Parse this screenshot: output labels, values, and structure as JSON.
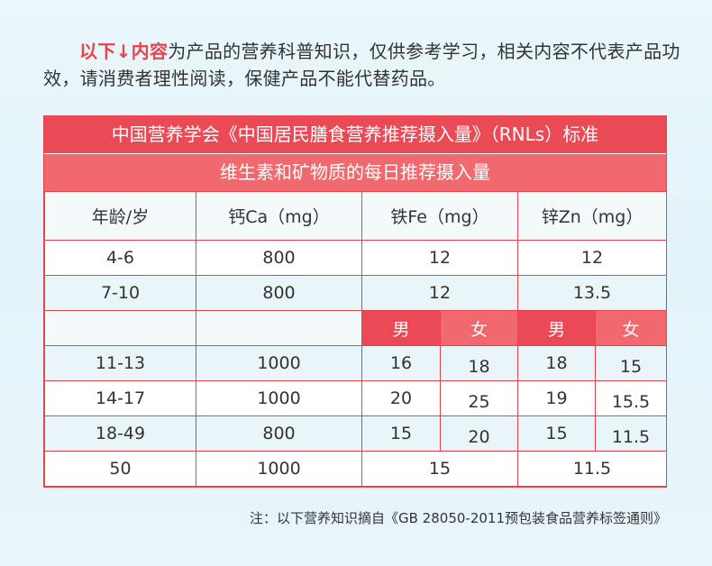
{
  "intro": {
    "highlight": "以下↓内容",
    "text": "为产品的营养科普知识，仅供参考学习，相关内容不代表产品功效，请消费者理性阅读，保健产品不能代替药品。"
  },
  "table": {
    "title": "中国营养学会《中国居民膳食营养推荐摄入量》（RNLs）标准",
    "subtitle": "维生素和矿物质的每日推荐摄入量",
    "headers": [
      "年龄/岁",
      "钙Ca（mg）",
      "铁Fe（mg）",
      "锌Zn（mg）"
    ],
    "sex_labels": {
      "male": "男",
      "female": "女"
    },
    "rows_combined_top": [
      {
        "age": "4-6",
        "ca": "800",
        "fe": "12",
        "zn": "12"
      },
      {
        "age": "7-10",
        "ca": "800",
        "fe": "12",
        "zn": "13.5"
      }
    ],
    "rows_split": [
      {
        "age": "11-13",
        "ca": "1000",
        "fe_m": "16",
        "fe_f": "18",
        "zn_m": "18",
        "zn_f": "15"
      },
      {
        "age": "14-17",
        "ca": "1000",
        "fe_m": "20",
        "fe_f": "25",
        "zn_m": "19",
        "zn_f": "15.5"
      },
      {
        "age": "18-49",
        "ca": "800",
        "fe_m": "15",
        "fe_f": "20",
        "zn_m": "15",
        "zn_f": "11.5"
      }
    ],
    "row_last": {
      "age": "50",
      "ca": "1000",
      "fe": "15",
      "zn": "11.5"
    }
  },
  "note": "注：以下营养知识摘自《GB 28050-2011预包装食品营养标签通则》"
}
